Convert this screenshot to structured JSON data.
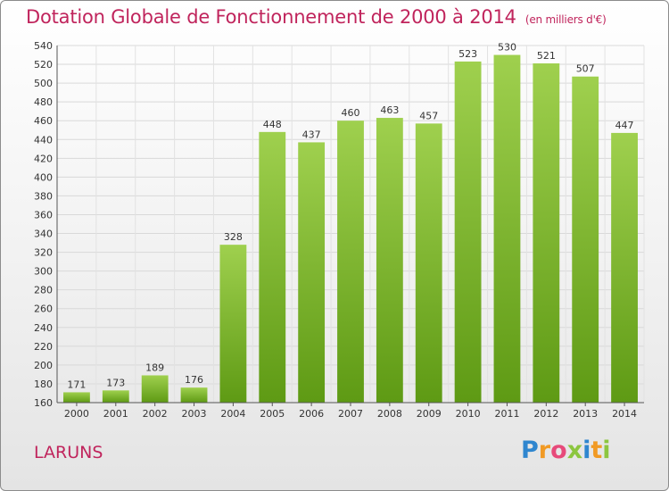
{
  "title": "Dotation Globale de Fonctionnement de 2000 à 2014",
  "subtitle": "(en milliers d'€)",
  "place": "LARUNS",
  "logo": {
    "letters": [
      "P",
      "r",
      "o",
      "x",
      "i",
      "t",
      "i"
    ]
  },
  "colors": {
    "title": "#c0245c",
    "bar_top": "#9fd04e",
    "bar_bottom": "#5e9a14"
  },
  "chart_data": {
    "type": "bar",
    "title": "Dotation Globale de Fonctionnement de 2000 à 2014",
    "subtitle": "(en milliers d'€)",
    "xlabel": "",
    "ylabel": "",
    "categories": [
      "2000",
      "2001",
      "2002",
      "2003",
      "2004",
      "2005",
      "2006",
      "2007",
      "2008",
      "2009",
      "2010",
      "2011",
      "2012",
      "2013",
      "2014"
    ],
    "values": [
      171,
      173,
      189,
      176,
      328,
      448,
      437,
      460,
      463,
      457,
      523,
      530,
      521,
      507,
      447
    ],
    "ylim": [
      160,
      540
    ],
    "yticks": [
      160,
      180,
      200,
      220,
      240,
      260,
      280,
      300,
      320,
      340,
      360,
      380,
      400,
      420,
      440,
      460,
      480,
      500,
      520,
      540
    ],
    "grid": true,
    "legend": "none"
  }
}
